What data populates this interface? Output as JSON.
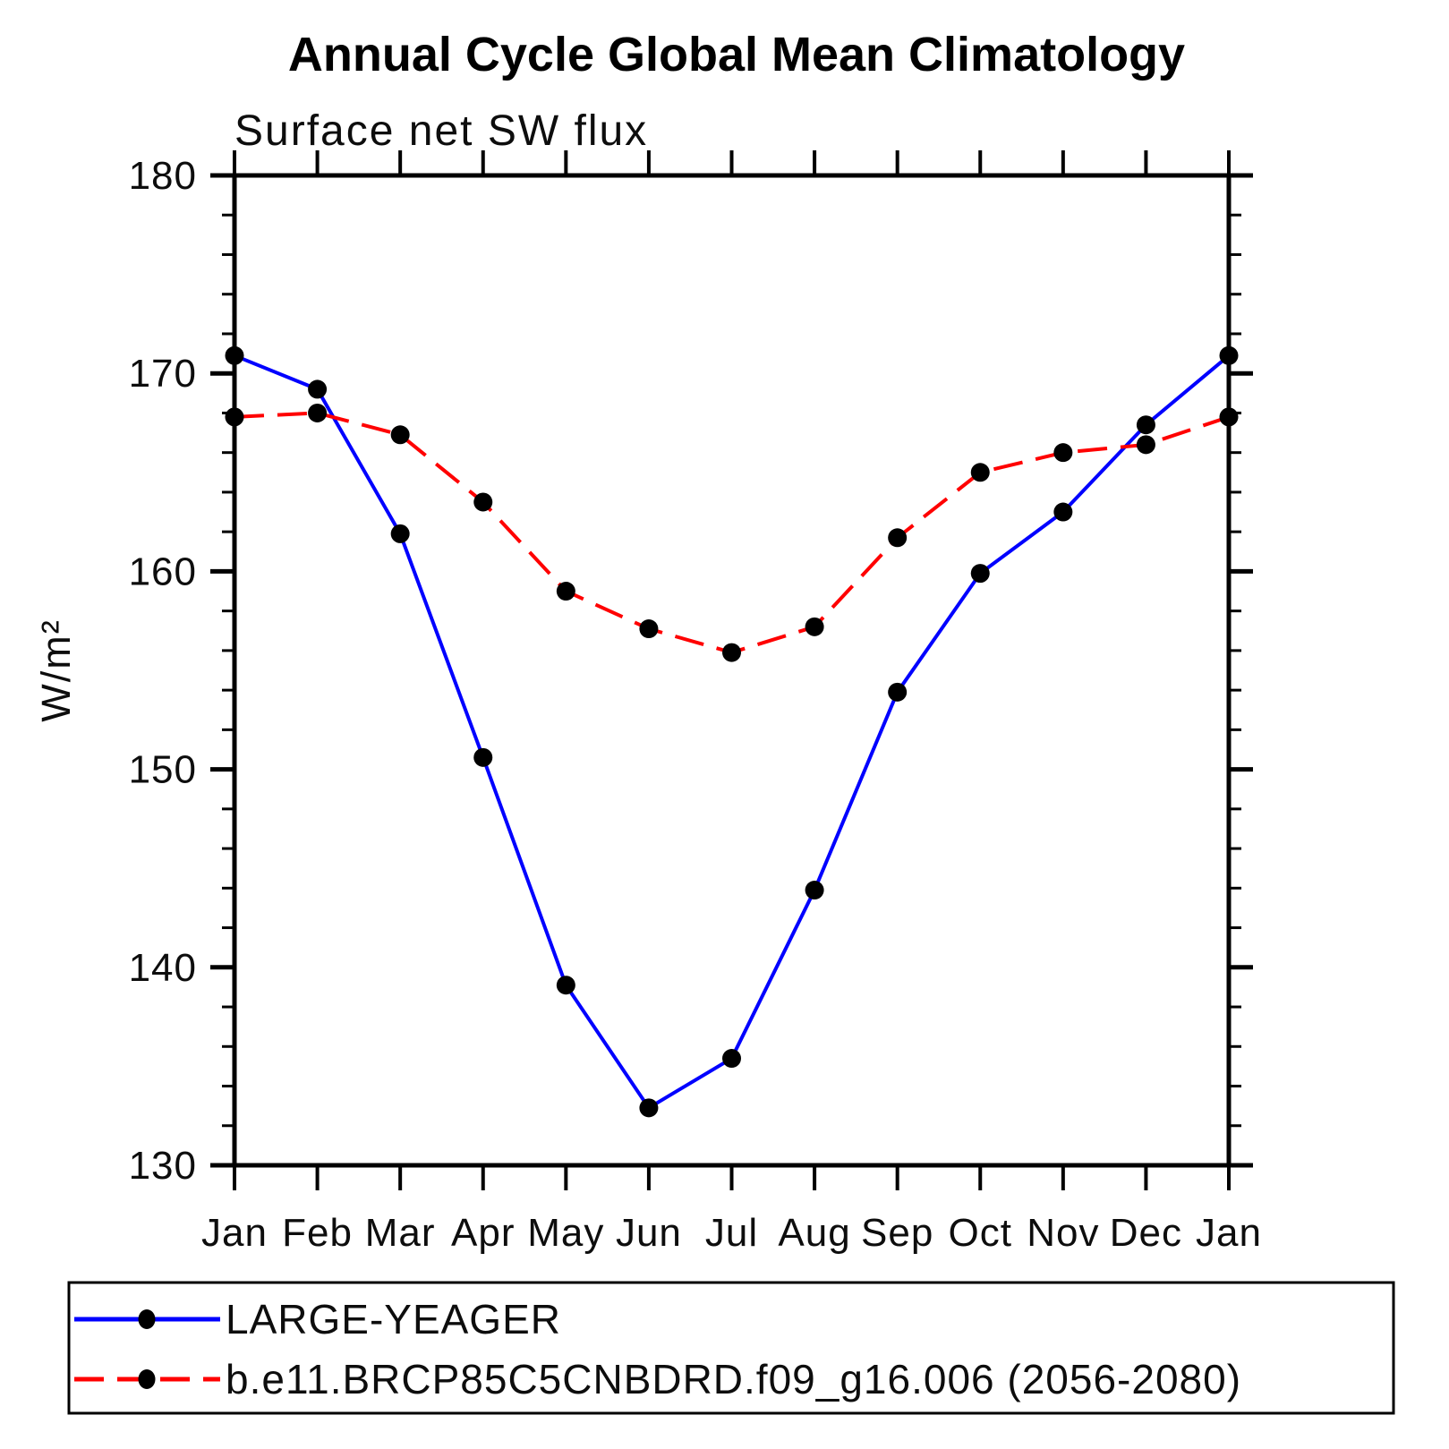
{
  "title": "Annual Cycle Global Mean Climatology",
  "chart_data": {
    "type": "line",
    "subtitle": "Surface net SW flux",
    "ylabel": "W/m²",
    "ylim": [
      130,
      180
    ],
    "ytick_major": 10,
    "ytick_minor": 2,
    "grid": false,
    "legend_position": "bottom-left-box",
    "x_categories": [
      "Jan",
      "Feb",
      "Mar",
      "Apr",
      "May",
      "Jun",
      "Jul",
      "Aug",
      "Sep",
      "Oct",
      "Nov",
      "Dec",
      "Jan"
    ],
    "series": [
      {
        "name": "LARGE-YEAGER",
        "color": "#0000ff",
        "line_style": "solid",
        "marker": "filled-circle",
        "marker_color": "#000000",
        "values": [
          170.9,
          169.2,
          161.9,
          150.6,
          139.1,
          132.9,
          135.4,
          143.9,
          153.9,
          159.9,
          163.0,
          167.4,
          170.9
        ]
      },
      {
        "name": "b.e11.BRCP85C5CNBDRD.f09_g16.006 (2056-2080)",
        "color": "#ff0000",
        "line_style": "dashed",
        "marker": "filled-circle",
        "marker_color": "#000000",
        "values": [
          167.8,
          168.0,
          166.9,
          163.5,
          159.0,
          157.1,
          155.9,
          157.2,
          161.7,
          165.0,
          166.0,
          166.4,
          167.8
        ]
      }
    ]
  }
}
